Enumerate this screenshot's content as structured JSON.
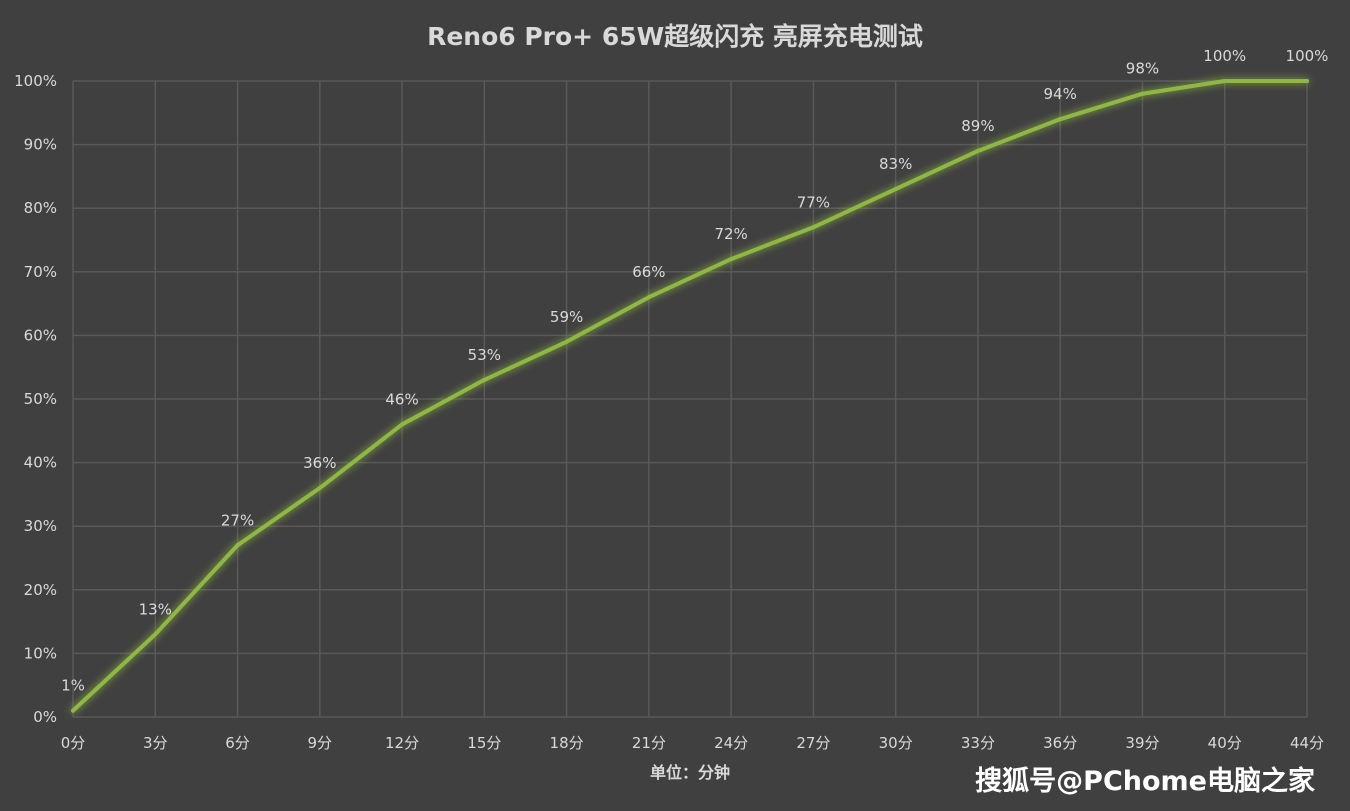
{
  "watermark": "搜狐号@PChome电脑之家",
  "chart_data": {
    "type": "line",
    "title": "Reno6 Pro+ 65W超级闪充 亮屏充电测试",
    "xlabel": "单位：分钟",
    "ylabel": "",
    "categories": [
      "0分",
      "3分",
      "6分",
      "9分",
      "12分",
      "15分",
      "18分",
      "21分",
      "24分",
      "27分",
      "30分",
      "33分",
      "36分",
      "39分",
      "40分",
      "44分"
    ],
    "series": [
      {
        "values": [
          1,
          13,
          27,
          36,
          46,
          53,
          59,
          66,
          72,
          77,
          83,
          89,
          94,
          98,
          100,
          100
        ],
        "labels": [
          "1%",
          "13%",
          "27%",
          "36%",
          "46%",
          "53%",
          "59%",
          "66%",
          "72%",
          "77%",
          "83%",
          "89%",
          "94%",
          "98%",
          "100%",
          "100%"
        ],
        "color": "#8fb843"
      }
    ],
    "yticks": [
      "0%",
      "10%",
      "20%",
      "30%",
      "40%",
      "50%",
      "60%",
      "70%",
      "80%",
      "90%",
      "100%"
    ],
    "ylim": [
      0,
      100
    ],
    "grid": true,
    "legend": "none"
  }
}
